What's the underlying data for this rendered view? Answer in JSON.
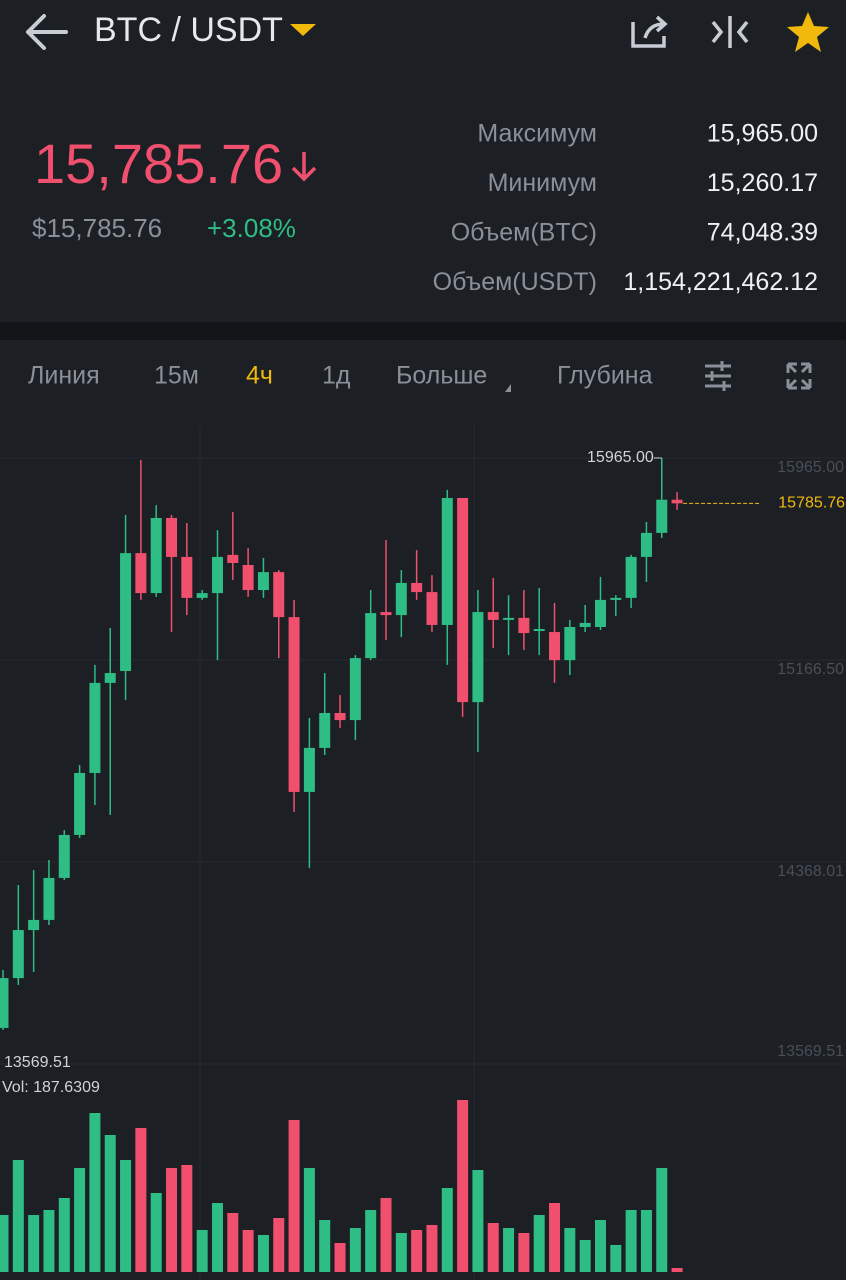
{
  "header": {
    "pair": "BTC / USDT"
  },
  "ticker": {
    "last": "15,785.76",
    "last_usd": "$15,785.76",
    "change": "+3.08%",
    "stats": [
      {
        "label": "Максимум",
        "value": "15,965.00"
      },
      {
        "label": "Минимум",
        "value": "15,260.17"
      },
      {
        "label": "Объем(BTC)",
        "value": "74,048.39"
      },
      {
        "label": "Объем(USDT)",
        "value": "1,154,221,462.12"
      }
    ]
  },
  "tabs": [
    "Линия",
    "15м",
    "4ч",
    "1д",
    "Больше",
    "Глубина"
  ],
  "chart_data": {
    "type": "candlestick",
    "up_color": "#2ebd85",
    "down_color": "#f0506e",
    "ylim": [
      13569.51,
      15965.0
    ],
    "yticks": [
      {
        "value": 15965.0,
        "label": "15965.00"
      },
      {
        "value": 15166.5,
        "label": "15166.50"
      },
      14368.01,
      13569.51
    ],
    "grid": true,
    "high_label": "15965.00",
    "low_label": "13569.51",
    "last_label": "15785.76",
    "volume_label": "Vol: 187.6309",
    "open": [
      13712,
      13909,
      14099,
      14139,
      14305,
      14475,
      14720,
      15076,
      15123,
      15589,
      15431,
      15728,
      15574,
      15412,
      15431,
      15582,
      15542,
      15443,
      15514,
      15336,
      14645,
      14819,
      14957,
      14929,
      15174,
      15356,
      15344,
      15471,
      15435,
      15305,
      15807,
      15000,
      15356,
      15325,
      15333,
      15281,
      15277,
      15166,
      15297,
      15297,
      15404,
      15412,
      15574,
      15669,
      15800
    ],
    "high": [
      13941,
      14277,
      14336,
      14376,
      14494,
      14751,
      15147,
      15293,
      15740,
      15957,
      15779,
      15740,
      15708,
      15443,
      15680,
      15752,
      15609,
      15570,
      15522,
      15404,
      14937,
      15115,
      15028,
      15186,
      15443,
      15641,
      15522,
      15601,
      15502,
      15839,
      15807,
      15443,
      15491,
      15423,
      15443,
      15451,
      15392,
      15325,
      15384,
      15495,
      15423,
      15582,
      15712,
      15965,
      15830
    ],
    "low": [
      13704,
      13882,
      13933,
      14119,
      14297,
      14463,
      14593,
      14554,
      15008,
      15404,
      15416,
      15277,
      15344,
      15404,
      15166,
      15483,
      15416,
      15412,
      15174,
      14566,
      14344,
      14791,
      14898,
      14850,
      15166,
      15246,
      15257,
      15404,
      15277,
      15147,
      14941,
      14803,
      15214,
      15186,
      15206,
      15186,
      15076,
      15107,
      15277,
      15285,
      15340,
      15372,
      15475,
      15649,
      15760
    ],
    "close": [
      13909,
      14099,
      14139,
      14305,
      14475,
      14720,
      15076,
      15115,
      15589,
      15431,
      15728,
      15574,
      15412,
      15431,
      15574,
      15550,
      15443,
      15514,
      15336,
      14645,
      14819,
      14957,
      14929,
      15174,
      15352,
      15344,
      15471,
      15435,
      15305,
      15807,
      15000,
      15356,
      15325,
      15333,
      15273,
      15289,
      15166,
      15297,
      15313,
      15404,
      15412,
      15574,
      15669,
      15800,
      15785.76
    ],
    "volume": [
      57,
      112,
      57,
      62,
      74,
      104,
      159,
      137,
      112,
      144,
      79,
      104,
      107,
      42,
      69,
      59,
      42,
      37,
      54,
      152,
      104,
      52,
      29,
      44,
      62,
      74,
      39,
      42,
      47,
      84,
      172,
      102,
      49,
      44,
      39,
      57,
      69,
      44,
      32,
      52,
      27,
      62,
      62,
      104,
      4
    ]
  }
}
